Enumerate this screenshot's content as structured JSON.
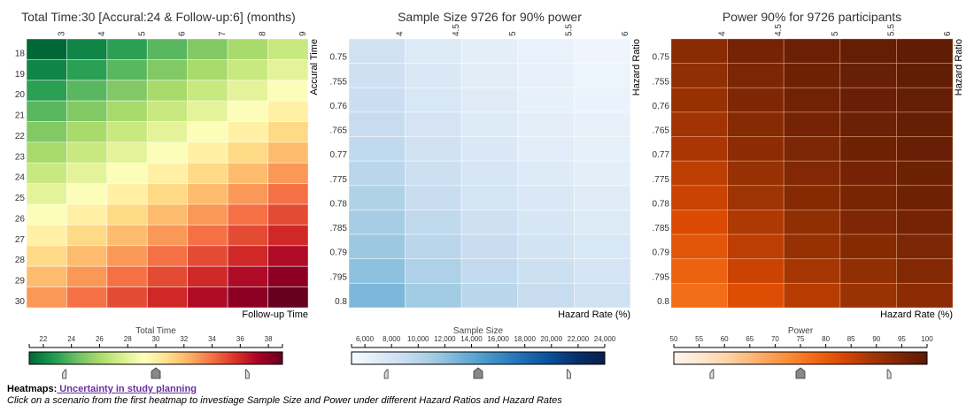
{
  "chart_data": [
    {
      "type": "heatmap",
      "title": "Total Time:30 [Accural:24 & Follow-up:6] (months)",
      "xlabel": "Follow-up Time",
      "ylabel": "Accural Time",
      "x": [
        3,
        4,
        5,
        6,
        7,
        8,
        9
      ],
      "y": [
        18,
        19,
        20,
        21,
        22,
        23,
        24,
        25,
        26,
        27,
        28,
        29,
        30
      ],
      "values": [
        [
          21,
          22,
          23,
          24,
          25,
          26,
          27
        ],
        [
          22,
          23,
          24,
          25,
          26,
          27,
          28
        ],
        [
          23,
          24,
          25,
          26,
          27,
          28,
          29
        ],
        [
          24,
          25,
          26,
          27,
          28,
          29,
          30
        ],
        [
          25,
          26,
          27,
          28,
          29,
          30,
          31
        ],
        [
          26,
          27,
          28,
          29,
          30,
          31,
          32
        ],
        [
          27,
          28,
          29,
          30,
          31,
          32,
          33
        ],
        [
          28,
          29,
          30,
          31,
          32,
          33,
          34
        ],
        [
          29,
          30,
          31,
          32,
          33,
          34,
          35
        ],
        [
          30,
          31,
          32,
          33,
          34,
          35,
          36
        ],
        [
          31,
          32,
          33,
          34,
          35,
          36,
          37
        ],
        [
          32,
          33,
          34,
          35,
          36,
          37,
          38
        ],
        [
          33,
          34,
          35,
          36,
          37,
          38,
          39
        ]
      ],
      "colorscale": "RdYlGn-reversed",
      "legend": {
        "title": "Total Time",
        "range": [
          21,
          39
        ],
        "ticks": [
          22,
          24,
          26,
          28,
          30,
          32,
          34,
          36,
          38
        ],
        "handle_low": 23.5,
        "handle_mid": 30,
        "handle_high": 36.5
      }
    },
    {
      "type": "heatmap",
      "title": "Sample Size 9726 for 90% power",
      "xlabel": "Hazard Rate (%)",
      "ylabel": "Hazard Ratio",
      "x": [
        4,
        4.5,
        5,
        5.5,
        6
      ],
      "x_ticklabels": [
        "4",
        "4.5",
        "5",
        "5.5",
        "6"
      ],
      "y_ticklabels": [
        "0.75",
        ".755",
        "0.76",
        ".765",
        "0.77",
        ".775",
        "0.78",
        ".785",
        "0.79",
        ".795",
        "0.8"
      ],
      "values": [
        [
          8300,
          7300,
          6700,
          6200,
          5800
        ],
        [
          8500,
          7500,
          6800,
          6300,
          5900
        ],
        [
          8800,
          7700,
          7000,
          6500,
          6100
        ],
        [
          9100,
          8000,
          7200,
          6700,
          6300
        ],
        [
          9500,
          8300,
          7500,
          6900,
          6500
        ],
        [
          9900,
          8600,
          7800,
          7200,
          6700
        ],
        [
          10400,
          9000,
          8100,
          7500,
          7000
        ],
        [
          10900,
          9500,
          8500,
          7800,
          7300
        ],
        [
          11400,
          9900,
          8900,
          8200,
          7600
        ],
        [
          12000,
          10500,
          9400,
          8600,
          8000
        ],
        [
          12700,
          11100,
          9900,
          9100,
          8400
        ]
      ],
      "colorscale": "Blues",
      "legend": {
        "title": "Sample Size",
        "range": [
          5000,
          24000
        ],
        "ticks": [
          "6,000",
          "8,000",
          "10,000",
          "12,000",
          "14,000",
          "16,000",
          "18,000",
          "20,000",
          "22,000",
          "24,000"
        ],
        "tick_values": [
          6000,
          8000,
          10000,
          12000,
          14000,
          16000,
          18000,
          20000,
          22000,
          24000
        ],
        "handle_low": 7600,
        "handle_mid": 14500,
        "handle_high": 21300
      }
    },
    {
      "type": "heatmap",
      "title": "Power 90% for 9726 participants",
      "xlabel": "Hazard Rate (%)",
      "ylabel": "Hazard Ratio",
      "x": [
        4,
        4.5,
        5,
        5.5,
        6
      ],
      "x_ticklabels": [
        "4",
        "4.5",
        "5",
        "5.5",
        "6"
      ],
      "y_ticklabels": [
        "0.75",
        ".755",
        "0.76",
        ".765",
        "0.77",
        ".775",
        "0.78",
        ".785",
        "0.79",
        ".795",
        "0.8"
      ],
      "values": [
        [
          93,
          96,
          97.5,
          98.5,
          99
        ],
        [
          92,
          95,
          97,
          98,
          98.8
        ],
        [
          91,
          94.5,
          96.5,
          97.8,
          98.5
        ],
        [
          89.5,
          93.5,
          96,
          97.3,
          98.2
        ],
        [
          88.5,
          92.5,
          95,
          96.8,
          97.8
        ],
        [
          86.5,
          91,
          94,
          96,
          97.2
        ],
        [
          85,
          90,
          93.5,
          95.5,
          96.8
        ],
        [
          83,
          88,
          92,
          94.5,
          96
        ],
        [
          81,
          86.5,
          91,
          93.5,
          95
        ],
        [
          79,
          85,
          89,
          92,
          94
        ],
        [
          77,
          82.5,
          87,
          90.5,
          92.5
        ]
      ],
      "colorscale": "Oranges",
      "legend": {
        "title": "Power",
        "range": [
          50,
          100
        ],
        "ticks": [
          50,
          55,
          60,
          65,
          70,
          75,
          80,
          85,
          90,
          95,
          100
        ],
        "handle_low": 57.5,
        "handle_mid": 75,
        "handle_high": 92.5
      }
    }
  ],
  "footer": {
    "label": "Heatmaps:",
    "link_text": " Uncertainty in study planning ",
    "description": "Click on a scenario from the first heatmap to investiage Sample Size and Power under different Hazard Ratios and Hazard Rates"
  }
}
